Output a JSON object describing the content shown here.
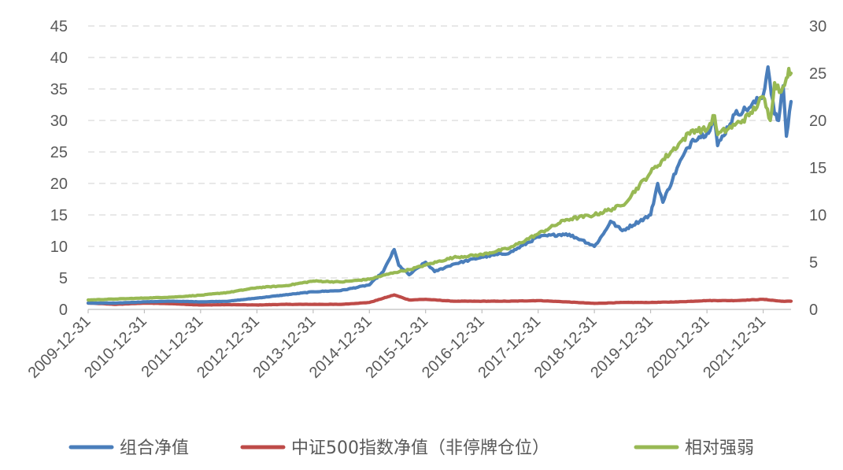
{
  "chart_data": {
    "type": "line",
    "title": "",
    "xlabel": "",
    "ylabel": "",
    "x_ticks": [
      "2009-12-31",
      "2010-12-31",
      "2011-12-31",
      "2012-12-31",
      "2013-12-31",
      "2014-12-31",
      "2015-12-31",
      "2016-12-31",
      "2017-12-31",
      "2018-12-31",
      "2019-12-31",
      "2020-12-31",
      "2021-12-31"
    ],
    "x_range": [
      "2009-12-31",
      "2022-06-30"
    ],
    "y_left": {
      "min": 0,
      "max": 45,
      "ticks": [
        0,
        5,
        10,
        15,
        20,
        25,
        30,
        35,
        40,
        45
      ]
    },
    "y_right": {
      "min": 0,
      "max": 30,
      "ticks": [
        0,
        5,
        10,
        15,
        20,
        25,
        30
      ]
    },
    "grid": true,
    "legend_position": "bottom",
    "series": [
      {
        "name": "组合净值",
        "color": "#4a7ebb",
        "axis": "left",
        "points": [
          [
            "2009-12-31",
            1.0
          ],
          [
            "2010-06-30",
            1.0
          ],
          [
            "2010-12-31",
            1.2
          ],
          [
            "2011-06-30",
            1.3
          ],
          [
            "2011-12-31",
            1.2
          ],
          [
            "2012-06-30",
            1.3
          ],
          [
            "2012-12-31",
            1.8
          ],
          [
            "2013-06-30",
            2.3
          ],
          [
            "2013-12-31",
            2.8
          ],
          [
            "2014-06-30",
            3.0
          ],
          [
            "2014-12-31",
            3.9
          ],
          [
            "2015-03-31",
            6.0
          ],
          [
            "2015-06-10",
            9.5
          ],
          [
            "2015-07-10",
            7.0
          ],
          [
            "2015-09-15",
            5.5
          ],
          [
            "2015-12-31",
            7.5
          ],
          [
            "2016-02-28",
            6.0
          ],
          [
            "2016-06-30",
            7.2
          ],
          [
            "2016-12-31",
            8.3
          ],
          [
            "2017-06-30",
            9.0
          ],
          [
            "2017-12-31",
            11.5
          ],
          [
            "2018-06-30",
            12.0
          ],
          [
            "2018-10-15",
            11.0
          ],
          [
            "2018-12-31",
            10.0
          ],
          [
            "2019-02-28",
            12.0
          ],
          [
            "2019-04-15",
            14.0
          ],
          [
            "2019-06-30",
            12.5
          ],
          [
            "2019-12-31",
            15.0
          ],
          [
            "2020-02-15",
            20.0
          ],
          [
            "2020-03-20",
            17.0
          ],
          [
            "2020-06-30",
            23.0
          ],
          [
            "2020-09-30",
            27.0
          ],
          [
            "2020-12-31",
            28.0
          ],
          [
            "2021-02-18",
            30.0
          ],
          [
            "2021-03-10",
            26.0
          ],
          [
            "2021-06-30",
            31.0
          ],
          [
            "2021-09-30",
            32.0
          ],
          [
            "2021-12-31",
            34.0
          ],
          [
            "2022-01-31",
            38.5
          ],
          [
            "2022-03-15",
            31.0
          ],
          [
            "2022-04-10",
            30.0
          ],
          [
            "2022-05-10",
            35.5
          ],
          [
            "2022-05-31",
            27.5
          ],
          [
            "2022-06-30",
            33.0
          ]
        ]
      },
      {
        "name": "中证500指数净值（非停牌仓位）",
        "color": "#be4b48",
        "axis": "left",
        "points": [
          [
            "2009-12-31",
            1.0
          ],
          [
            "2010-06-30",
            0.8
          ],
          [
            "2010-12-31",
            1.0
          ],
          [
            "2011-06-30",
            0.9
          ],
          [
            "2011-12-31",
            0.7
          ],
          [
            "2012-06-30",
            0.75
          ],
          [
            "2012-12-31",
            0.7
          ],
          [
            "2013-06-30",
            0.8
          ],
          [
            "2013-12-31",
            0.8
          ],
          [
            "2014-06-30",
            0.8
          ],
          [
            "2014-12-31",
            1.1
          ],
          [
            "2015-06-10",
            2.3
          ],
          [
            "2015-09-15",
            1.5
          ],
          [
            "2015-12-31",
            1.6
          ],
          [
            "2016-06-30",
            1.3
          ],
          [
            "2016-12-31",
            1.3
          ],
          [
            "2017-06-30",
            1.3
          ],
          [
            "2017-12-31",
            1.4
          ],
          [
            "2018-06-30",
            1.2
          ],
          [
            "2018-12-31",
            0.95
          ],
          [
            "2019-06-30",
            1.1
          ],
          [
            "2019-12-31",
            1.1
          ],
          [
            "2020-06-30",
            1.2
          ],
          [
            "2020-12-31",
            1.4
          ],
          [
            "2021-06-30",
            1.4
          ],
          [
            "2021-12-31",
            1.6
          ],
          [
            "2022-04-26",
            1.3
          ],
          [
            "2022-06-30",
            1.3
          ]
        ]
      },
      {
        "name": "相对强弱",
        "color": "#98b954",
        "axis": "right",
        "points": [
          [
            "2009-12-31",
            1.0
          ],
          [
            "2010-06-30",
            1.1
          ],
          [
            "2010-12-31",
            1.2
          ],
          [
            "2011-06-30",
            1.3
          ],
          [
            "2011-12-31",
            1.5
          ],
          [
            "2012-06-30",
            1.8
          ],
          [
            "2012-12-31",
            2.3
          ],
          [
            "2013-06-30",
            2.5
          ],
          [
            "2013-12-31",
            3.0
          ],
          [
            "2014-06-30",
            2.9
          ],
          [
            "2014-12-31",
            3.2
          ],
          [
            "2015-06-10",
            3.9
          ],
          [
            "2015-09-15",
            4.2
          ],
          [
            "2015-12-31",
            4.7
          ],
          [
            "2016-06-30",
            5.5
          ],
          [
            "2016-12-31",
            5.8
          ],
          [
            "2017-06-30",
            6.5
          ],
          [
            "2017-12-31",
            8.0
          ],
          [
            "2018-06-30",
            9.5
          ],
          [
            "2018-12-31",
            10.0
          ],
          [
            "2019-06-30",
            11.0
          ],
          [
            "2019-12-31",
            14.5
          ],
          [
            "2020-06-30",
            17.5
          ],
          [
            "2020-09-30",
            19.0
          ],
          [
            "2020-12-31",
            19.0
          ],
          [
            "2021-02-18",
            20.5
          ],
          [
            "2021-03-10",
            18.5
          ],
          [
            "2021-06-30",
            19.5
          ],
          [
            "2021-09-30",
            20.5
          ],
          [
            "2021-12-31",
            22.5
          ],
          [
            "2022-02-15",
            20.0
          ],
          [
            "2022-03-15",
            24.0
          ],
          [
            "2022-04-26",
            23.0
          ],
          [
            "2022-05-31",
            24.5
          ],
          [
            "2022-06-15",
            25.5
          ],
          [
            "2022-06-30",
            25.0
          ]
        ]
      }
    ]
  }
}
